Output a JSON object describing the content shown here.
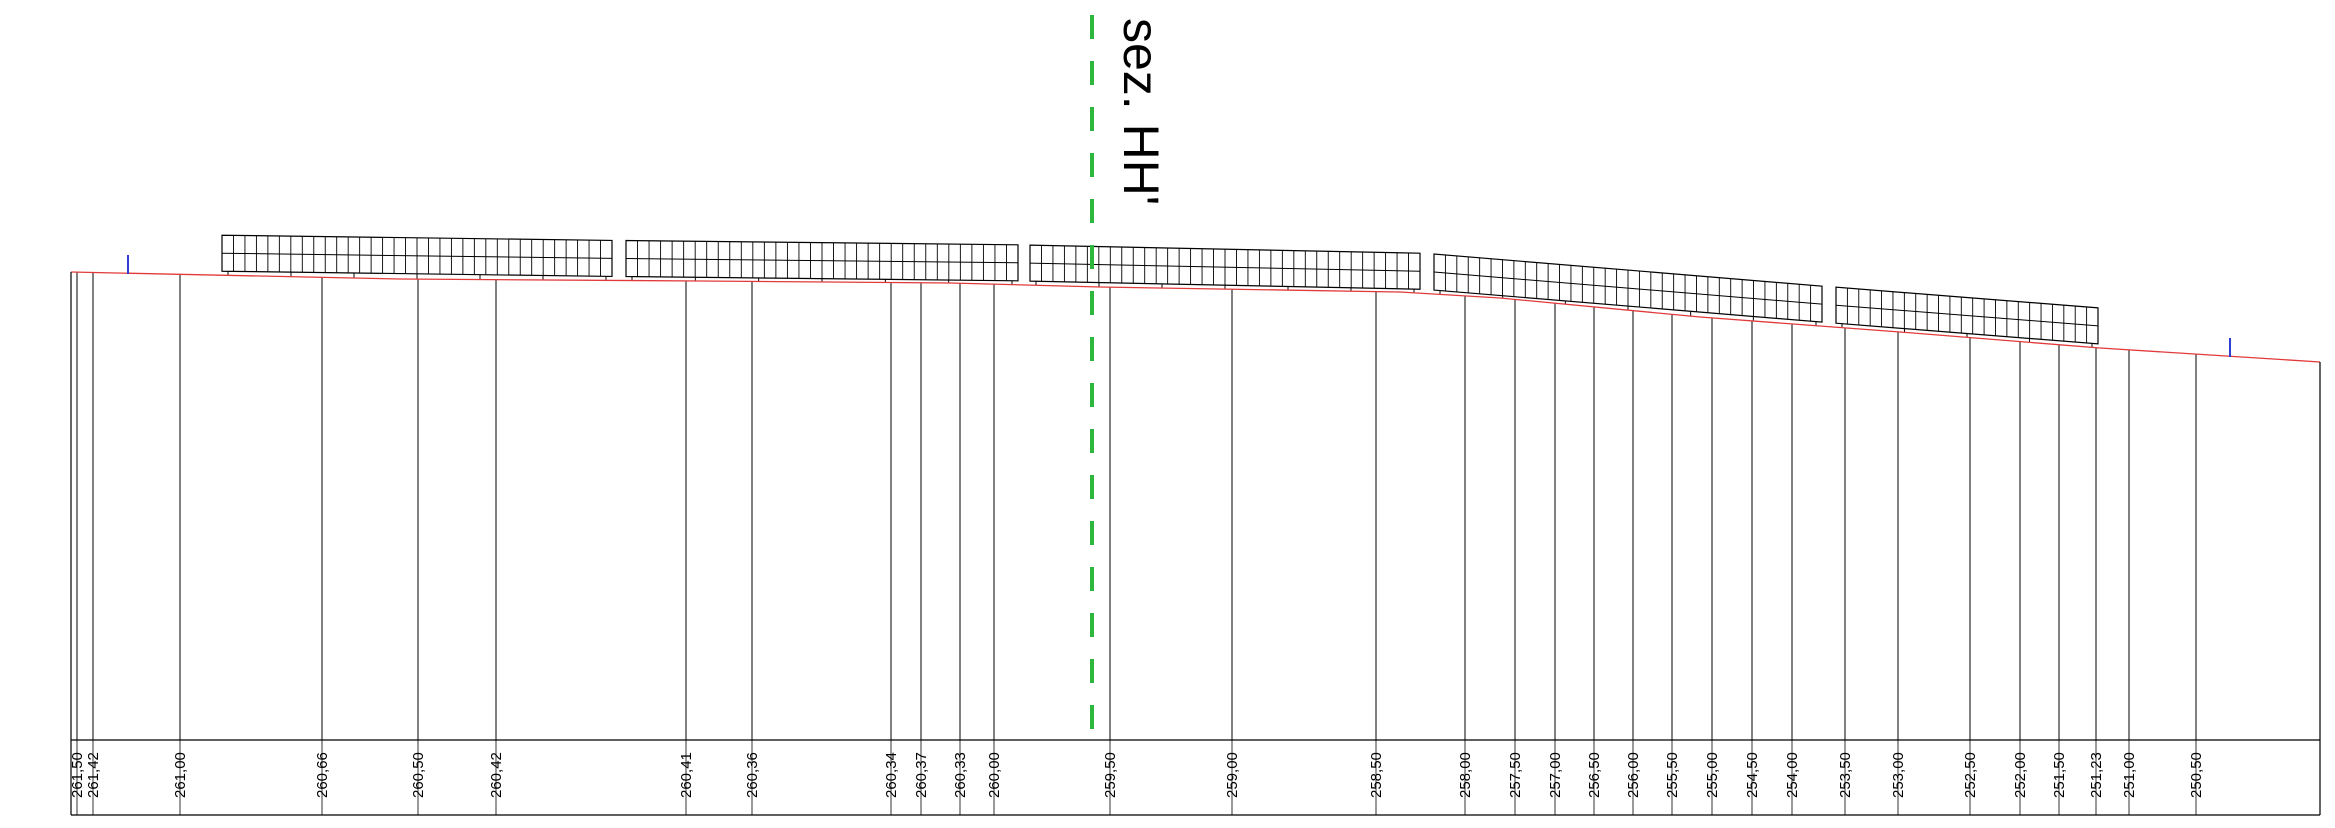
{
  "section": {
    "label": "sez. HH'",
    "line_color": "#2db83d"
  },
  "profile": {
    "terrain_color": "#e23a3a",
    "marker_color": "#2f3fd6",
    "line_color": "#000000"
  },
  "stations": [
    {
      "label": "261,50"
    },
    {
      "label": "261,42"
    },
    {
      "label": "261,00"
    },
    {
      "label": "260,66"
    },
    {
      "label": "260,50"
    },
    {
      "label": "260,42"
    },
    {
      "label": "260,41"
    },
    {
      "label": "260,36"
    },
    {
      "label": "260,34"
    },
    {
      "label": "260,37"
    },
    {
      "label": "260,33"
    },
    {
      "label": "260,00"
    },
    {
      "label": "259,50"
    },
    {
      "label": "259,00"
    },
    {
      "label": "258,50"
    },
    {
      "label": "258,00"
    },
    {
      "label": "257,50"
    },
    {
      "label": "257,00"
    },
    {
      "label": "256,50"
    },
    {
      "label": "256,00"
    },
    {
      "label": "255,50"
    },
    {
      "label": "255,00"
    },
    {
      "label": "254,50"
    },
    {
      "label": "254,00"
    },
    {
      "label": "253,50"
    },
    {
      "label": "253,00"
    },
    {
      "label": "252,50"
    },
    {
      "label": "252,00"
    },
    {
      "label": "251,50"
    },
    {
      "label": "251,23"
    },
    {
      "label": "251,00"
    },
    {
      "label": "250,50"
    }
  ],
  "panel_rows": [
    {
      "name": "row-1"
    },
    {
      "name": "row-2"
    },
    {
      "name": "row-3"
    },
    {
      "name": "row-4"
    },
    {
      "name": "row-5"
    },
    {
      "name": "row-6"
    }
  ]
}
